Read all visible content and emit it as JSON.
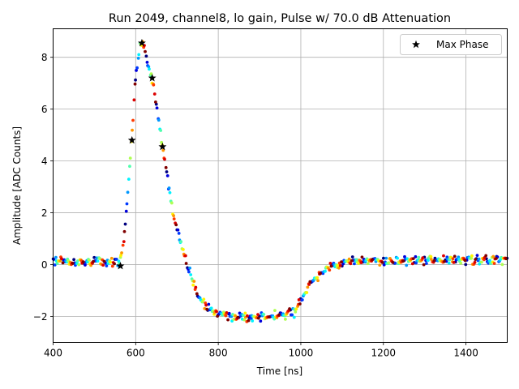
{
  "chart_data": {
    "type": "scatter",
    "title": "Run 2049, channel8, lo gain, Pulse w/ 70.0 dB Attenuation",
    "xlabel": "Time [ns]",
    "ylabel": "Amplitude [ADC Counts]",
    "xlim": [
      400,
      1500
    ],
    "ylim": [
      -3,
      9.1
    ],
    "xticks": [
      400,
      600,
      800,
      1000,
      1200,
      1400
    ],
    "yticks": [
      -2,
      0,
      2,
      4,
      6,
      8
    ],
    "grid": true,
    "legend": {
      "position": "top-right",
      "entries": [
        "Max Phase"
      ]
    },
    "colormap": "jet",
    "pulse_waveform": {
      "x": [
        400,
        540,
        560,
        570,
        580,
        590,
        600,
        610,
        615,
        625,
        640,
        665,
        690,
        720,
        750,
        780,
        820,
        880,
        940,
        985,
        1000,
        1020,
        1050,
        1080,
        1110,
        1150,
        1500
      ],
      "y": [
        0.15,
        0.1,
        0.1,
        0.6,
        2.6,
        4.8,
        7.3,
        8.4,
        8.6,
        8.1,
        7.1,
        4.6,
        2.0,
        0.2,
        -1.2,
        -1.75,
        -1.95,
        -2.05,
        -1.95,
        -1.85,
        -1.4,
        -0.8,
        -0.3,
        0.0,
        0.1,
        0.15,
        0.2
      ]
    },
    "series": [
      {
        "name": "Max Phase",
        "marker": "star",
        "color": "#000000",
        "x": [
          563,
          591,
          615,
          640,
          665
        ],
        "y": [
          -0.05,
          4.8,
          8.55,
          7.2,
          4.55
        ]
      }
    ]
  }
}
